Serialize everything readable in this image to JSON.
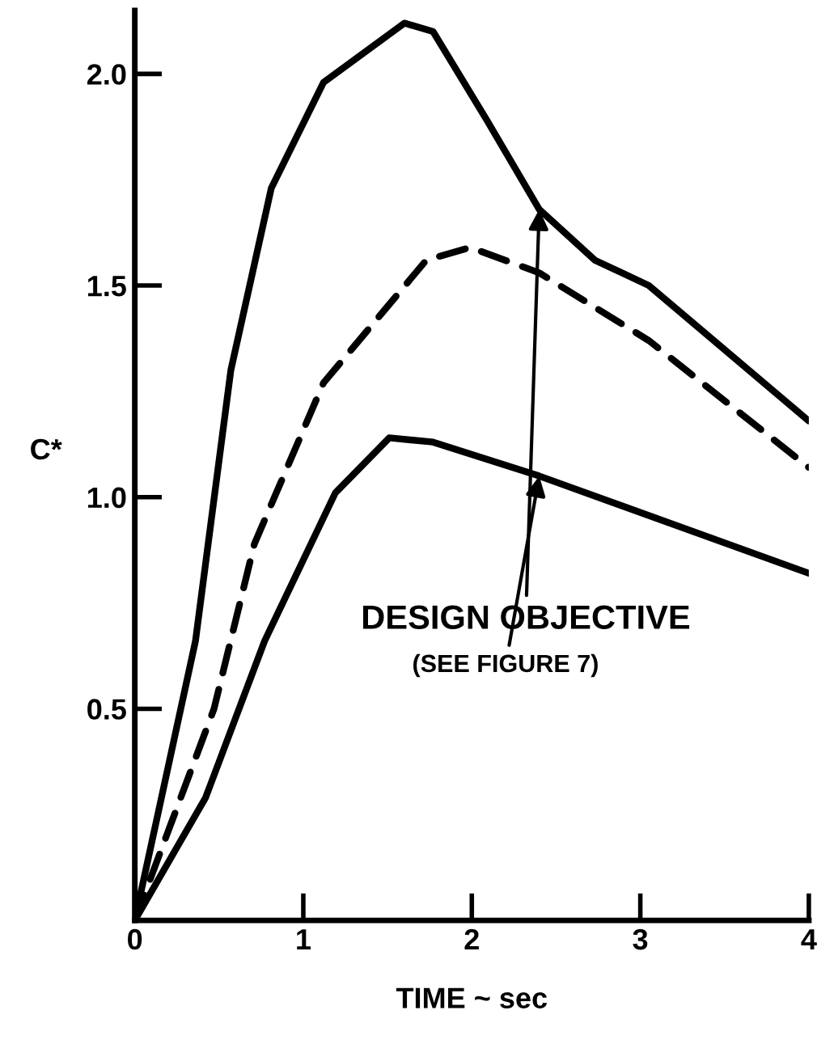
{
  "chart_data": {
    "type": "line",
    "xlabel": "TIME ~ sec",
    "ylabel": "C*",
    "xlim": [
      0,
      4
    ],
    "ylim": [
      0,
      2.15
    ],
    "xticks": [
      0,
      1,
      2,
      3,
      4
    ],
    "yticks": [
      0.5,
      {
        "value": 1,
        "label": "1.0"
      },
      1.5,
      {
        "value": 2,
        "label": "2.0"
      }
    ],
    "grid": false,
    "legend": false,
    "marker": "none",
    "series": [
      {
        "color": "#000000",
        "line_style": "solid",
        "x": [
          0,
          0.36,
          0.57,
          0.81,
          1.12,
          1.6,
          1.77,
          2.09,
          2.4,
          2.73,
          3.05,
          4
        ],
        "values": [
          0,
          0.66,
          1.3,
          1.73,
          1.98,
          2.12,
          2.1,
          1.89,
          1.68,
          1.56,
          1.5,
          1.18
        ]
      },
      {
        "color": "#000000",
        "line_style": "dashed",
        "x": [
          0,
          0.47,
          0.71,
          1.12,
          1.73,
          1.99,
          2.4,
          3.05,
          4
        ],
        "values": [
          0,
          0.5,
          0.89,
          1.27,
          1.56,
          1.59,
          1.53,
          1.37,
          1.07
        ]
      },
      {
        "color": "#000000",
        "line_style": "solid",
        "x": [
          0,
          0.42,
          0.77,
          1.19,
          1.51,
          1.77,
          2.4,
          4
        ],
        "values": [
          0,
          0.29,
          0.66,
          1.01,
          1.14,
          1.13,
          1.05,
          0.82
        ]
      }
    ],
    "annotations": [
      {
        "text": "DESIGN OBJECTIVE",
        "x": 2.4,
        "y": 1.68
      },
      {
        "text": "(SEE FIGURE 7)",
        "x": 2.4,
        "y": 1.05
      }
    ]
  }
}
